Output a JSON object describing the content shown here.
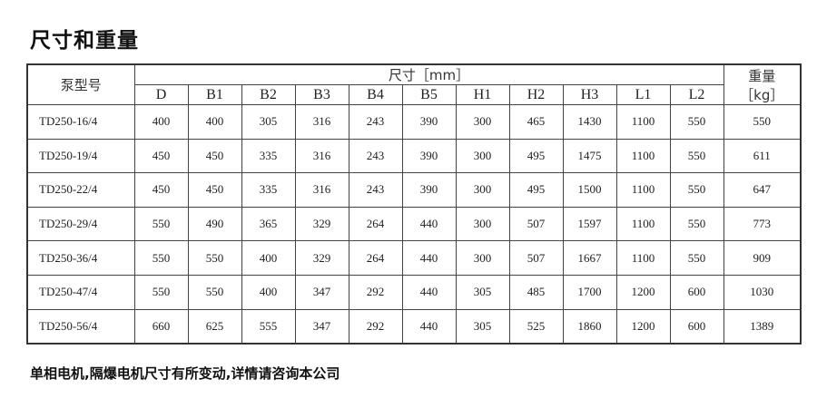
{
  "title": "尺寸和重量",
  "table": {
    "model_header": "泵型号",
    "dim_group_header": "尺寸［mm］",
    "weight_header_line1": "重量",
    "weight_header_line2": "［kg］",
    "dim_columns": [
      "D",
      "B1",
      "B2",
      "B3",
      "B4",
      "B5",
      "H1",
      "H2",
      "H3",
      "L1",
      "L2"
    ],
    "rows": [
      {
        "model": "TD250-16/4",
        "values": [
          "400",
          "400",
          "305",
          "316",
          "243",
          "390",
          "300",
          "465",
          "1430",
          "1100",
          "550"
        ],
        "weight": "550"
      },
      {
        "model": "TD250-19/4",
        "values": [
          "450",
          "450",
          "335",
          "316",
          "243",
          "390",
          "300",
          "495",
          "1475",
          "1100",
          "550"
        ],
        "weight": "611"
      },
      {
        "model": "TD250-22/4",
        "values": [
          "450",
          "450",
          "335",
          "316",
          "243",
          "390",
          "300",
          "495",
          "1500",
          "1100",
          "550"
        ],
        "weight": "647"
      },
      {
        "model": "TD250-29/4",
        "values": [
          "550",
          "490",
          "365",
          "329",
          "264",
          "440",
          "300",
          "507",
          "1597",
          "1100",
          "550"
        ],
        "weight": "773"
      },
      {
        "model": "TD250-36/4",
        "values": [
          "550",
          "550",
          "400",
          "329",
          "264",
          "440",
          "300",
          "507",
          "1667",
          "1100",
          "550"
        ],
        "weight": "909"
      },
      {
        "model": "TD250-47/4",
        "values": [
          "550",
          "550",
          "400",
          "347",
          "292",
          "440",
          "305",
          "485",
          "1700",
          "1200",
          "600"
        ],
        "weight": "1030"
      },
      {
        "model": "TD250-56/4",
        "values": [
          "660",
          "625",
          "555",
          "347",
          "292",
          "440",
          "305",
          "525",
          "1860",
          "1200",
          "600"
        ],
        "weight": "1389"
      }
    ]
  },
  "footer": "单相电机,隔爆电机尺寸有所变动,详情请咨询本公司"
}
